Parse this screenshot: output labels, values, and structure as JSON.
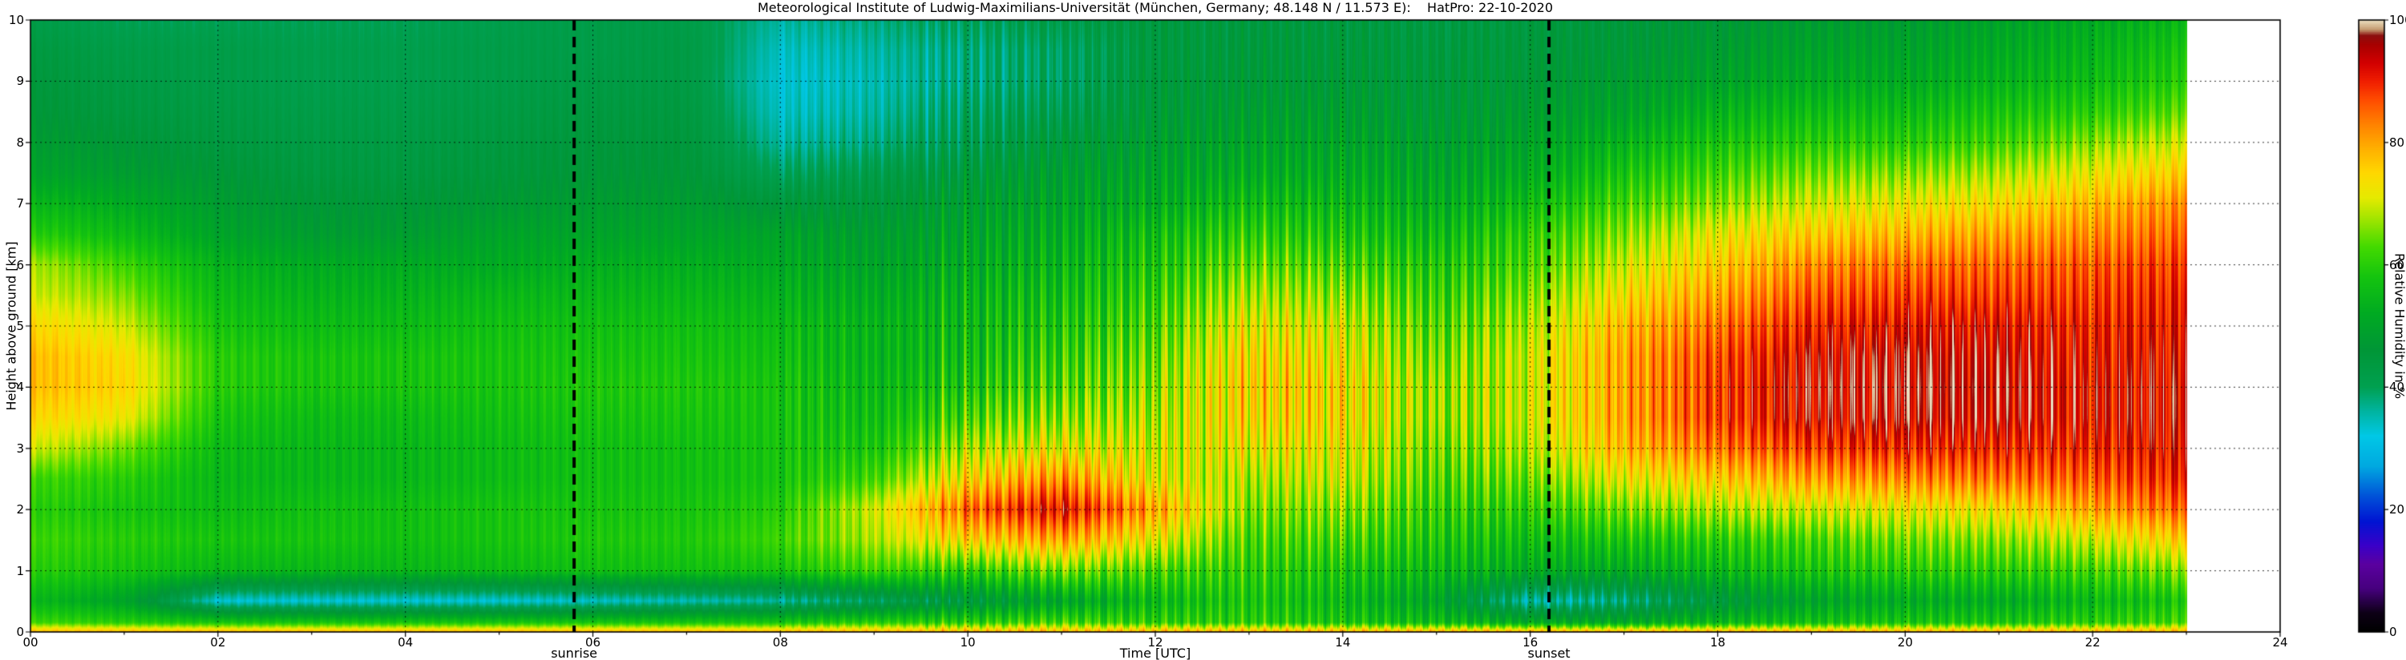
{
  "title": "Meteorological Institute of Ludwig-Maximilians-Universität (München, Germany; 48.148 N / 11.573 E):    HatPro: 22-10-2020",
  "axes": {
    "xlabel": "Time [UTC]",
    "ylabel": "Height above ground [km]",
    "x_ticks": [
      "00",
      "02",
      "04",
      "06",
      "08",
      "10",
      "12",
      "14",
      "16",
      "18",
      "20",
      "22",
      "24"
    ],
    "x_tick_hours": [
      0,
      2,
      4,
      6,
      8,
      10,
      12,
      14,
      16,
      18,
      20,
      22,
      24
    ],
    "y_ticks": [
      "0",
      "1",
      "2",
      "3",
      "4",
      "5",
      "6",
      "7",
      "8",
      "9",
      "10"
    ],
    "y_tick_km": [
      0,
      1,
      2,
      3,
      4,
      5,
      6,
      7,
      8,
      9,
      10
    ],
    "x_range": [
      0,
      24
    ],
    "y_range": [
      0,
      10
    ]
  },
  "colorbar": {
    "label": "Relative Humidity in %",
    "tick_labels": [
      "0",
      "20",
      "40",
      "60",
      "80",
      "100"
    ],
    "tick_values": [
      0,
      20,
      40,
      60,
      80,
      100
    ],
    "value_range": [
      0,
      100
    ]
  },
  "annotations": {
    "sunrise": {
      "label": "sunrise",
      "time_utc": 5.8
    },
    "sunset": {
      "label": "sunset",
      "time_utc": 16.2
    }
  },
  "chart_data": {
    "type": "heatmap",
    "title": "Meteorological Institute of Ludwig-Maximilians-Universität (München, Germany; 48.148 N / 11.573 E):    HatPro: 22-10-2020",
    "xlabel": "Time [UTC]",
    "ylabel": "Height above ground [km]",
    "value_label": "Relative Humidity in %",
    "x_range_hours": [
      0,
      24
    ],
    "y_range_km": [
      0,
      10
    ],
    "value_range": [
      0,
      100
    ],
    "data_end_hour": 23,
    "grid": "dashed-black-major",
    "x_hours_utc": [
      0,
      1,
      2,
      3,
      4,
      5,
      6,
      7,
      8,
      9,
      10,
      11,
      12,
      13,
      14,
      15,
      16,
      17,
      18,
      19,
      20,
      21,
      22,
      23
    ],
    "heights_km": [
      0,
      0.15,
      0.5,
      1,
      1.5,
      2,
      2.5,
      3,
      3.5,
      4,
      4.5,
      5,
      5.5,
      6,
      6.5,
      7,
      7.5,
      8,
      8.5,
      9,
      9.5,
      10
    ],
    "rh_percent_profiles_by_hour": [
      [
        78,
        62,
        55,
        60,
        62,
        60,
        62,
        70,
        75,
        78,
        78,
        75,
        70,
        68,
        60,
        55,
        50,
        48,
        46,
        45,
        44,
        42
      ],
      [
        78,
        60,
        50,
        58,
        60,
        58,
        60,
        65,
        72,
        75,
        74,
        70,
        66,
        62,
        56,
        52,
        48,
        46,
        44,
        43,
        42,
        40
      ],
      [
        78,
        58,
        33,
        55,
        58,
        56,
        55,
        56,
        58,
        60,
        60,
        58,
        56,
        54,
        50,
        48,
        46,
        44,
        43,
        42,
        42,
        40
      ],
      [
        78,
        58,
        33,
        55,
        58,
        57,
        55,
        55,
        56,
        58,
        58,
        56,
        54,
        52,
        48,
        46,
        44,
        43,
        42,
        41,
        41,
        40
      ],
      [
        78,
        58,
        33,
        55,
        57,
        57,
        55,
        55,
        56,
        58,
        58,
        56,
        54,
        52,
        48,
        46,
        44,
        43,
        42,
        41,
        41,
        40
      ],
      [
        78,
        58,
        33,
        56,
        58,
        58,
        56,
        56,
        57,
        58,
        58,
        57,
        55,
        52,
        50,
        47,
        45,
        44,
        43,
        42,
        42,
        41
      ],
      [
        78,
        58,
        34,
        57,
        59,
        58,
        57,
        57,
        58,
        59,
        58,
        57,
        55,
        53,
        50,
        48,
        46,
        45,
        44,
        43,
        42,
        42
      ],
      [
        78,
        58,
        35,
        57,
        59,
        58,
        57,
        57,
        58,
        59,
        58,
        57,
        55,
        53,
        50,
        48,
        46,
        45,
        44,
        43,
        43,
        42
      ],
      [
        78,
        58,
        36,
        58,
        62,
        60,
        58,
        58,
        58,
        58,
        57,
        56,
        54,
        52,
        50,
        45,
        40,
        36,
        34,
        33,
        34,
        36
      ],
      [
        78,
        60,
        40,
        62,
        68,
        70,
        62,
        58,
        56,
        55,
        54,
        54,
        52,
        50,
        48,
        45,
        42,
        38,
        36,
        35,
        36,
        38
      ],
      [
        78,
        60,
        45,
        60,
        75,
        85,
        75,
        68,
        62,
        58,
        56,
        55,
        54,
        52,
        50,
        48,
        45,
        42,
        40,
        38,
        38,
        40
      ],
      [
        78,
        62,
        50,
        65,
        80,
        92,
        82,
        72,
        66,
        62,
        60,
        58,
        56,
        54,
        52,
        50,
        48,
        45,
        42,
        40,
        40,
        42
      ],
      [
        78,
        60,
        55,
        62,
        72,
        80,
        72,
        70,
        68,
        66,
        64,
        62,
        60,
        58,
        56,
        52,
        50,
        48,
        46,
        45,
        44,
        44
      ],
      [
        78,
        60,
        58,
        60,
        62,
        65,
        68,
        72,
        75,
        76,
        75,
        72,
        68,
        64,
        60,
        56,
        52,
        50,
        48,
        46,
        45,
        44
      ],
      [
        78,
        58,
        55,
        58,
        62,
        66,
        70,
        72,
        74,
        74,
        72,
        70,
        66,
        62,
        58,
        55,
        52,
        50,
        48,
        46,
        45,
        44
      ],
      [
        78,
        56,
        50,
        55,
        58,
        60,
        62,
        64,
        66,
        66,
        64,
        62,
        60,
        58,
        55,
        52,
        50,
        48,
        46,
        45,
        44,
        43
      ],
      [
        78,
        52,
        35,
        52,
        56,
        60,
        64,
        68,
        70,
        70,
        70,
        68,
        65,
        62,
        60,
        56,
        52,
        50,
        48,
        46,
        45,
        44
      ],
      [
        78,
        52,
        38,
        52,
        58,
        65,
        72,
        78,
        80,
        80,
        80,
        78,
        74,
        70,
        66,
        62,
        58,
        54,
        50,
        48,
        46,
        45
      ],
      [
        78,
        55,
        45,
        55,
        60,
        68,
        76,
        84,
        88,
        88,
        87,
        84,
        80,
        76,
        72,
        66,
        62,
        58,
        54,
        50,
        48,
        46
      ],
      [
        78,
        57,
        50,
        58,
        62,
        70,
        80,
        88,
        93,
        94,
        93,
        90,
        86,
        82,
        76,
        70,
        65,
        60,
        56,
        52,
        50,
        48
      ],
      [
        78,
        58,
        52,
        60,
        65,
        72,
        82,
        90,
        95,
        96,
        95,
        92,
        88,
        84,
        78,
        72,
        66,
        60,
        56,
        52,
        50,
        48
      ],
      [
        78,
        58,
        52,
        60,
        66,
        74,
        84,
        90,
        94,
        95,
        94,
        92,
        88,
        85,
        80,
        74,
        68,
        62,
        58,
        54,
        52,
        50
      ],
      [
        78,
        60,
        55,
        62,
        70,
        80,
        86,
        90,
        92,
        92,
        91,
        90,
        88,
        86,
        82,
        78,
        72,
        66,
        60,
        56,
        54,
        52
      ],
      [
        78,
        62,
        58,
        66,
        76,
        85,
        90,
        92,
        93,
        93,
        92,
        91,
        90,
        88,
        85,
        82,
        76,
        70,
        64,
        60,
        58,
        55
      ]
    ],
    "colormap_stops": [
      [
        0,
        "#000000"
      ],
      [
        3,
        "#0d0016"
      ],
      [
        7,
        "#46007e"
      ],
      [
        11,
        "#5a00a0"
      ],
      [
        14,
        "#3b00c8"
      ],
      [
        18,
        "#0014d2"
      ],
      [
        22,
        "#0050d8"
      ],
      [
        27,
        "#00a8e0"
      ],
      [
        32,
        "#00c8e6"
      ],
      [
        36,
        "#00b4a0"
      ],
      [
        40,
        "#00a050"
      ],
      [
        46,
        "#009637"
      ],
      [
        52,
        "#00aa22"
      ],
      [
        58,
        "#14c40f"
      ],
      [
        63,
        "#44da00"
      ],
      [
        67,
        "#96e400"
      ],
      [
        71,
        "#e6ea00"
      ],
      [
        75,
        "#ffd800"
      ],
      [
        79,
        "#ffb000"
      ],
      [
        83,
        "#ff8200"
      ],
      [
        87,
        "#ff4c00"
      ],
      [
        90,
        "#f01e00"
      ],
      [
        93,
        "#d20000"
      ],
      [
        96,
        "#a80000"
      ],
      [
        97.5,
        "#8c1010"
      ],
      [
        98.5,
        "#c49a70"
      ],
      [
        100,
        "#ecdfc0"
      ]
    ]
  }
}
